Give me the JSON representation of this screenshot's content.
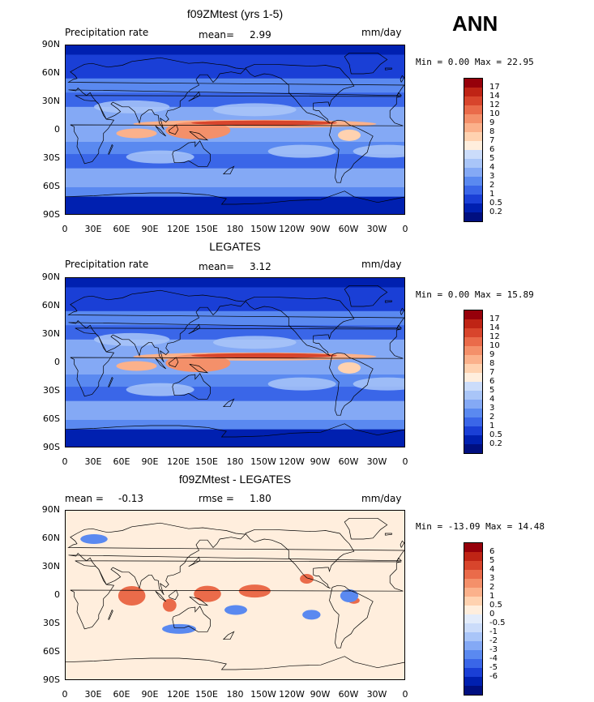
{
  "season": "ANN",
  "lat_ticks": [
    "90N",
    "60N",
    "30N",
    "0",
    "30S",
    "60S",
    "90S"
  ],
  "lon_ticks": [
    "0",
    "30E",
    "60E",
    "90E",
    "120E",
    "150E",
    "180",
    "150W",
    "120W",
    "90W",
    "60W",
    "30W",
    "0"
  ],
  "abs_colors": [
    "#000f80",
    "#0020b0",
    "#1a3fd6",
    "#3a66e8",
    "#5a89f0",
    "#84a9f5",
    "#a9c5f8",
    "#cbdcfa",
    "#ffeedd",
    "#ffd2b0",
    "#fbb18b",
    "#f4906a",
    "#ea6b4a",
    "#d8452c",
    "#bf2415",
    "#96000a"
  ],
  "diff_colors": [
    "#000f80",
    "#0020b0",
    "#1a3fd6",
    "#3a66e8",
    "#5a89f0",
    "#84a9f5",
    "#a9c5f8",
    "#cbdcfa",
    "#e3ecfb",
    "#ffeedd",
    "#ffd2b0",
    "#fbb18b",
    "#f4906a",
    "#ea6b4a",
    "#d8452c",
    "#bf2415",
    "#96000a"
  ],
  "chart_data": [
    {
      "type": "heatmap",
      "title": "f09ZMtest (yrs 1-5)",
      "variable": "Precipitation rate",
      "stat_label": "mean=",
      "stat_value": "2.99",
      "units": "mm/day",
      "min_label": "Min =",
      "min_value": "0.00",
      "max_label": "Max =",
      "max_value": "22.95",
      "levels": [
        "0.2",
        "0.5",
        "1",
        "2",
        "3",
        "4",
        "5",
        "6",
        "7",
        "8",
        "9",
        "10",
        "12",
        "14",
        "17"
      ],
      "field": "model annual mean precipitation, lat 90N-90S by lon 0-360",
      "mean": 2.99,
      "min": 0.0,
      "max": 22.95
    },
    {
      "type": "heatmap",
      "title": "LEGATES",
      "variable": "Precipitation rate",
      "stat_label": "mean=",
      "stat_value": "3.12",
      "units": "mm/day",
      "min_label": "Min =",
      "min_value": "0.00",
      "max_label": "Max =",
      "max_value": "15.89",
      "levels": [
        "0.2",
        "0.5",
        "1",
        "2",
        "3",
        "4",
        "5",
        "6",
        "7",
        "8",
        "9",
        "10",
        "12",
        "14",
        "17"
      ],
      "mean": 3.12,
      "min": 0.0,
      "max": 15.89
    },
    {
      "type": "heatmap",
      "title": "f09ZMtest - LEGATES",
      "stat_label": "mean =",
      "stat_value": "-0.13",
      "stat2_label": "rmse =",
      "stat2_value": "1.80",
      "units": "mm/day",
      "min_label": "Min =",
      "min_value": "-13.09",
      "max_label": "Max =",
      "max_value": "14.48",
      "levels": [
        "-6",
        "-5",
        "-4",
        "-3",
        "-2",
        "-1",
        "-0.5",
        "0",
        "0.5",
        "1",
        "2",
        "3",
        "4",
        "5",
        "6"
      ],
      "mean": -0.13,
      "rmse": 1.8,
      "min": -13.09,
      "max": 14.48
    }
  ]
}
